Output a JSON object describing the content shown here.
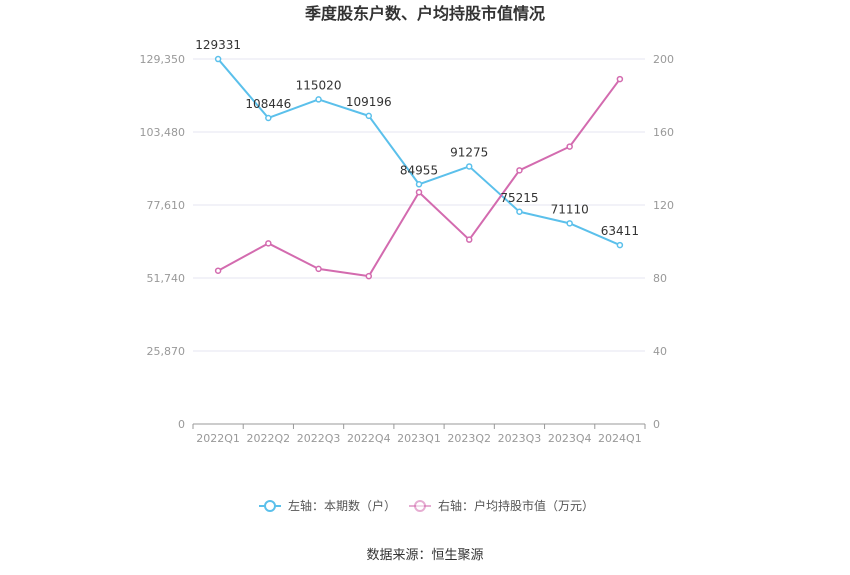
{
  "chart_data": {
    "type": "line",
    "title": "季度股东户数、户均持股市值情况",
    "categories": [
      "2022Q1",
      "2022Q2",
      "2022Q3",
      "2022Q4",
      "2023Q1",
      "2023Q2",
      "2023Q3",
      "2023Q4",
      "2024Q1"
    ],
    "series": [
      {
        "name": "左轴：本期数（户）",
        "axis": "left",
        "color": "#5bc0eb",
        "values": [
          129331,
          108446,
          115020,
          109196,
          84955,
          91275,
          75215,
          71110,
          63411
        ],
        "labels": [
          "129331",
          "108446",
          "115020",
          "109196",
          "84955",
          "91275",
          "75215",
          "71110",
          "63411"
        ]
      },
      {
        "name": "右轴：户均持股市值（万元）",
        "axis": "right",
        "color": "#d36baf",
        "values": [
          84,
          99,
          85,
          81,
          127,
          101,
          139,
          152,
          189
        ]
      }
    ],
    "y_left": {
      "lim": [
        0,
        129350
      ],
      "ticks": [
        0,
        25870,
        51740,
        77610,
        103480,
        129350
      ],
      "tick_labels": [
        "0",
        "25,870",
        "51,740",
        "77,610",
        "103,480",
        "129,350"
      ]
    },
    "y_right": {
      "lim": [
        0,
        200
      ],
      "ticks": [
        0,
        40,
        80,
        120,
        160,
        200
      ],
      "tick_labels": [
        "0",
        "40",
        "80",
        "120",
        "160",
        "200"
      ]
    },
    "grid": true,
    "legend": "bottom"
  },
  "source": "数据来源：恒生聚源"
}
